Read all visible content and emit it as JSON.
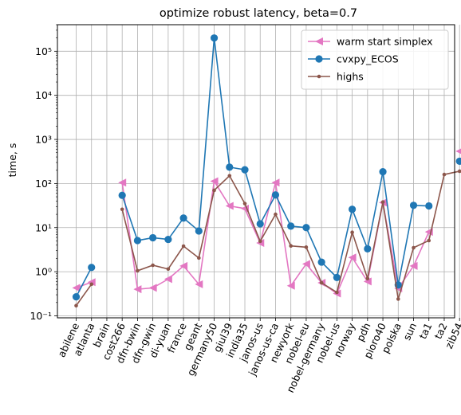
{
  "chart_data": {
    "type": "line",
    "title": "optimize robust latency, beta=0.7",
    "xlabel": "",
    "ylabel": "time, s",
    "yscale": "log",
    "ylim": [
      0.09,
      400000
    ],
    "grid": true,
    "legend_position": "top-right",
    "categories": [
      "abilene",
      "atlanta",
      "brain",
      "cost266",
      "dfn-bwin",
      "dfn-gwin",
      "di-yuan",
      "france",
      "geant",
      "germany50",
      "giul39",
      "india35",
      "janos-us",
      "janos-us-ca",
      "newyork",
      "nobel-eu",
      "nobel-germany",
      "nobel-us",
      "norway",
      "pdh",
      "pioro40",
      "polska",
      "sun",
      "ta1",
      "ta2",
      "zib54"
    ],
    "y_ticks": [
      {
        "value": 0.1,
        "label": "10⁻¹"
      },
      {
        "value": 1,
        "label": "10⁰"
      },
      {
        "value": 10,
        "label": "10¹"
      },
      {
        "value": 100,
        "label": "10²"
      },
      {
        "value": 1000,
        "label": "10³"
      },
      {
        "value": 10000,
        "label": "10⁴"
      },
      {
        "value": 100000,
        "label": "10⁵"
      }
    ],
    "series": [
      {
        "name": "warm start simplex",
        "color": "#e377c2",
        "marker": "triangle-left",
        "values": [
          0.43,
          0.58,
          null,
          105,
          0.4,
          0.43,
          0.68,
          1.35,
          0.52,
          113,
          31,
          27,
          4.5,
          105,
          0.48,
          1.5,
          0.56,
          0.32,
          2.1,
          0.6,
          37,
          0.42,
          1.35,
          8.0,
          null,
          540
        ]
      },
      {
        "name": "cvxpy_ECOS",
        "color": "#1f77b4",
        "marker": "circle",
        "values": [
          0.27,
          1.25,
          null,
          54,
          5.1,
          5.9,
          5.4,
          16.5,
          8.4,
          200000,
          235,
          205,
          12.2,
          55,
          10.8,
          10.0,
          1.65,
          0.74,
          26,
          3.3,
          185,
          0.5,
          32,
          31,
          null,
          320
        ]
      },
      {
        "name": "highs",
        "color": "#8c564b",
        "marker": "point",
        "values": [
          0.17,
          0.52,
          null,
          26,
          1.05,
          1.4,
          1.15,
          3.8,
          2.05,
          70,
          150,
          35,
          4.9,
          20,
          3.85,
          3.6,
          0.56,
          0.34,
          7.8,
          0.7,
          38,
          0.24,
          3.5,
          5.1,
          160,
          190
        ]
      }
    ]
  }
}
